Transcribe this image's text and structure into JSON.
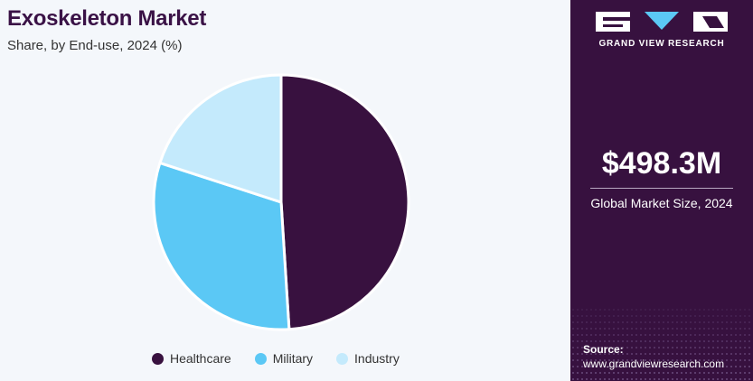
{
  "chart_data": {
    "type": "pie",
    "title": "Exoskeleton Market",
    "subtitle": "Share, by End-use, 2024 (%)",
    "categories": [
      "Healthcare",
      "Military",
      "Industry"
    ],
    "values": [
      49,
      31,
      20
    ],
    "colors": [
      "#38113f",
      "#5bc8f5",
      "#c4eafc"
    ],
    "legend_position": "bottom"
  },
  "sidebar": {
    "brand": "GRAND VIEW RESEARCH",
    "market_size": "$498.3M",
    "market_size_label": "Global Market Size, 2024",
    "source_label": "Source:",
    "source_url": "www.grandviewresearch.com",
    "background": "#37113f"
  }
}
